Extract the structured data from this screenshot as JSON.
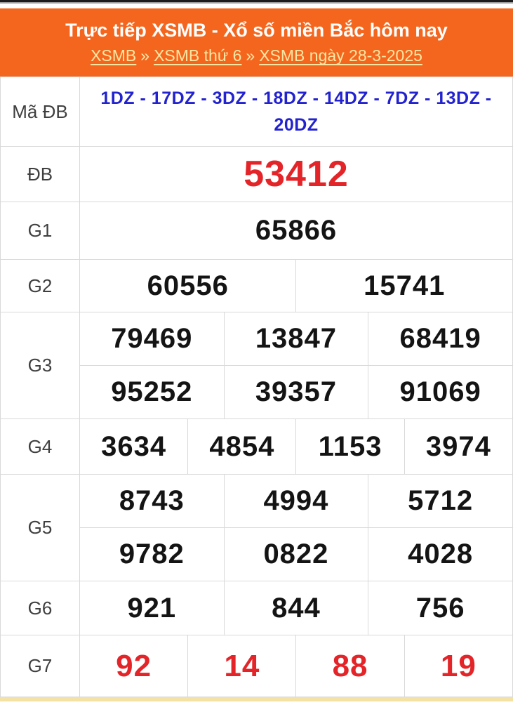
{
  "header": {
    "title": "Trực tiếp XSMB - Xổ số miền Bắc hôm nay",
    "separator": "»",
    "breadcrumb": [
      {
        "label": "XSMB"
      },
      {
        "label": "XSMB thứ 6"
      },
      {
        "label": "XSMB ngày 28-3-2025"
      }
    ]
  },
  "colors": {
    "header_background": "#f4661e",
    "breadcrumb_link": "#fbe7a3",
    "code_blue": "#2222cf",
    "prize_red": "#e32529",
    "number_black": "#141414",
    "table_border": "#d9d9d9",
    "bottom_strip": "#f3e2a4"
  },
  "results": [
    {
      "key": "ma-db",
      "label": "Mã ĐB",
      "style": "code",
      "lines": [
        [
          "1DZ - 17DZ - 3DZ - 18DZ - 14DZ - 7DZ - 13DZ - 20DZ"
        ]
      ]
    },
    {
      "key": "db",
      "label": "ĐB",
      "style": "special",
      "lines": [
        [
          "53412"
        ]
      ]
    },
    {
      "key": "g1",
      "label": "G1",
      "style": "normal",
      "lines": [
        [
          "65866"
        ]
      ]
    },
    {
      "key": "g2",
      "label": "G2",
      "style": "normal",
      "lines": [
        [
          "60556",
          "15741"
        ]
      ]
    },
    {
      "key": "g3",
      "label": "G3",
      "style": "normal",
      "lines": [
        [
          "79469",
          "13847",
          "68419"
        ],
        [
          "95252",
          "39357",
          "91069"
        ]
      ]
    },
    {
      "key": "g4",
      "label": "G4",
      "style": "normal",
      "lines": [
        [
          "3634",
          "4854",
          "1153",
          "3974"
        ]
      ]
    },
    {
      "key": "g5",
      "label": "G5",
      "style": "normal",
      "lines": [
        [
          "8743",
          "4994",
          "5712"
        ],
        [
          "9782",
          "0822",
          "4028"
        ]
      ]
    },
    {
      "key": "g6",
      "label": "G6",
      "style": "normal",
      "lines": [
        [
          "921",
          "844",
          "756"
        ]
      ]
    },
    {
      "key": "g7",
      "label": "G7",
      "style": "seven",
      "lines": [
        [
          "92",
          "14",
          "88",
          "19"
        ]
      ]
    }
  ]
}
